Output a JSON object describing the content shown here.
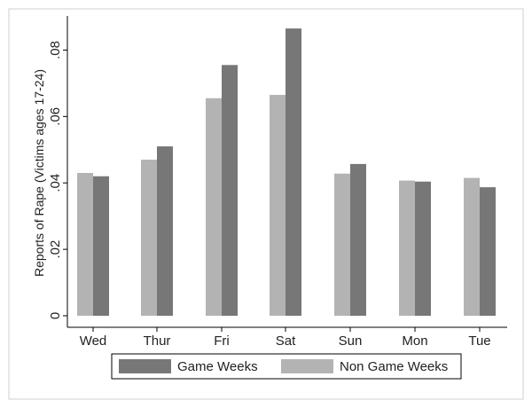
{
  "chart_data": {
    "type": "bar",
    "title": "",
    "xlabel": "",
    "ylabel": "Reports of Rape (Victims ages 17-24)",
    "categories": [
      "Wed",
      "Thur",
      "Fri",
      "Sat",
      "Sun",
      "Mon",
      "Tue"
    ],
    "series": [
      {
        "name": "Non Game Weeks",
        "color": "#b3b3b3",
        "values": [
          0.043,
          0.047,
          0.0655,
          0.0665,
          0.0428,
          0.0407,
          0.0415
        ]
      },
      {
        "name": "Game Weeks",
        "color": "#777777",
        "values": [
          0.042,
          0.051,
          0.0755,
          0.0865,
          0.0457,
          0.0404,
          0.0387
        ]
      }
    ],
    "ylim": [
      0,
      0.09
    ],
    "yticks": [
      0,
      0.02,
      0.04,
      0.06,
      0.08
    ],
    "ytick_labels": [
      "0",
      ".02",
      ".04",
      ".06",
      ".08"
    ],
    "grid": false,
    "legend": {
      "position": "bottom",
      "entries": [
        "Game Weeks",
        "Non Game Weeks"
      ]
    }
  }
}
